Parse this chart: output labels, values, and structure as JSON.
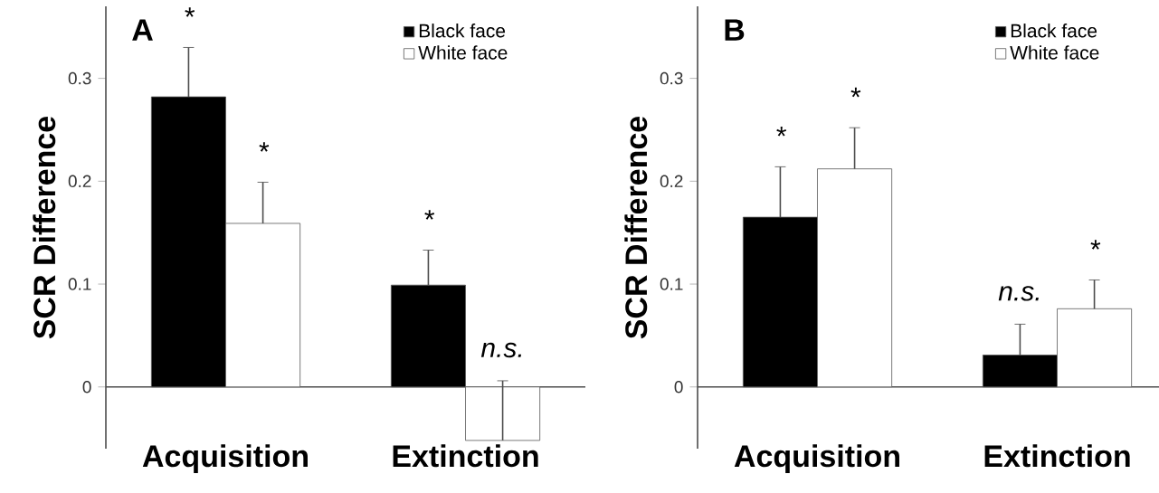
{
  "chart_data": [
    {
      "type": "bar",
      "title": "A",
      "ylabel": "SCR Difference",
      "categories": [
        "Acquisition",
        "Extinction"
      ],
      "series": [
        {
          "name": "Black face",
          "color": "#000000",
          "values": [
            0.282,
            0.099
          ],
          "errors": [
            0.048,
            0.034
          ]
        },
        {
          "name": "White face",
          "color": "#ffffff",
          "values": [
            0.159,
            -0.052
          ],
          "errors": [
            0.04,
            0.058
          ]
        }
      ],
      "ylim": [
        -0.06,
        0.37
      ],
      "yticks": [
        0,
        0.1,
        0.2,
        0.3
      ],
      "legend": "top right",
      "grid": false,
      "annotations": [
        "*",
        "*",
        "*",
        "n.s."
      ]
    },
    {
      "type": "bar",
      "title": "B",
      "ylabel": "SCR Difference",
      "categories": [
        "Acquisition",
        "Extinction"
      ],
      "series": [
        {
          "name": "Black face",
          "color": "#000000",
          "values": [
            0.165,
            0.031
          ],
          "errors": [
            0.049,
            0.03
          ]
        },
        {
          "name": "White face",
          "color": "#ffffff",
          "values": [
            0.212,
            0.076
          ],
          "errors": [
            0.04,
            0.028
          ]
        }
      ],
      "ylim": [
        -0.06,
        0.37
      ],
      "yticks": [
        0,
        0.1,
        0.2,
        0.3
      ],
      "legend": "top right",
      "grid": false,
      "annotations": [
        "*",
        "*",
        "n.s.",
        "*"
      ]
    }
  ]
}
